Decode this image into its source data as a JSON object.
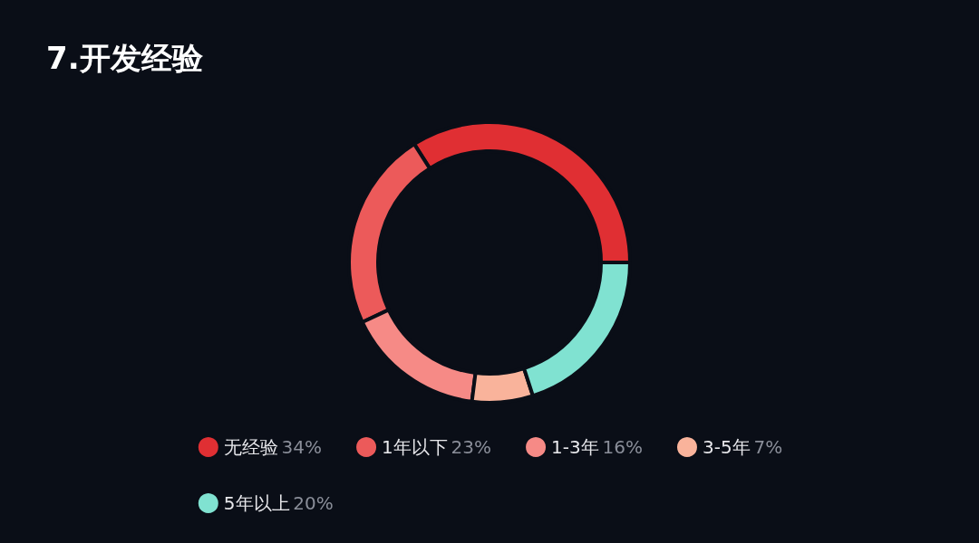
{
  "chart_data": {
    "type": "donut",
    "title": "7.开发经验",
    "categories": [
      "无经验",
      "1年以下",
      "1-3年",
      "3-5年",
      "5年以上"
    ],
    "values": [
      34,
      23,
      16,
      7,
      20
    ],
    "value_labels": [
      "34%",
      "23%",
      "16%",
      "7%",
      "20%"
    ],
    "colors": [
      "#e02f33",
      "#ec5a5a",
      "#f68a86",
      "#f9b39b",
      "#80e2d1"
    ],
    "legend": "bottom"
  }
}
